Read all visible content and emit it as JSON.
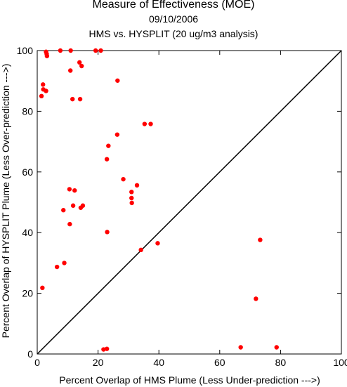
{
  "chart_data": {
    "type": "scatter",
    "title": "Measure of Effectiveness (MOE)",
    "subtitle": "09/10/2006",
    "subtitle2": "HMS vs. HYSPLIT  (20 ug/m3 analysis)",
    "xlabel": "Percent Overlap of HMS Plume (Less Under-prediction --->)",
    "ylabel": "Percent Overlap of HYSPLIT Plume (Less Over-prediction --->)",
    "xlim": [
      0,
      100
    ],
    "ylim": [
      0,
      100
    ],
    "xticks": [
      0,
      20,
      40,
      60,
      80,
      100
    ],
    "yticks": [
      0,
      20,
      40,
      60,
      80,
      100
    ],
    "grid": false,
    "reference_line": "y = x",
    "point_color": "#ff0000",
    "line_color": "#000000",
    "points": [
      {
        "x": 2.9,
        "y": 99.6
      },
      {
        "x": 3.1,
        "y": 98.9
      },
      {
        "x": 3.2,
        "y": 98.2
      },
      {
        "x": 7.6,
        "y": 100
      },
      {
        "x": 11.0,
        "y": 100
      },
      {
        "x": 19.2,
        "y": 100
      },
      {
        "x": 20.9,
        "y": 100
      },
      {
        "x": 13.9,
        "y": 96.1
      },
      {
        "x": 14.6,
        "y": 94.9
      },
      {
        "x": 10.9,
        "y": 93.4
      },
      {
        "x": 26.4,
        "y": 90.1
      },
      {
        "x": 1.9,
        "y": 88.8
      },
      {
        "x": 2.0,
        "y": 87.2
      },
      {
        "x": 2.9,
        "y": 86.7
      },
      {
        "x": 1.4,
        "y": 85.0
      },
      {
        "x": 11.6,
        "y": 84.0
      },
      {
        "x": 14.1,
        "y": 84.0
      },
      {
        "x": 35.3,
        "y": 75.8
      },
      {
        "x": 37.3,
        "y": 75.8
      },
      {
        "x": 26.3,
        "y": 72.3
      },
      {
        "x": 23.4,
        "y": 68.6
      },
      {
        "x": 22.9,
        "y": 64.2
      },
      {
        "x": 28.3,
        "y": 57.6
      },
      {
        "x": 32.8,
        "y": 55.6
      },
      {
        "x": 10.6,
        "y": 54.3
      },
      {
        "x": 12.3,
        "y": 53.9
      },
      {
        "x": 31.0,
        "y": 53.4
      },
      {
        "x": 31.0,
        "y": 51.4
      },
      {
        "x": 31.1,
        "y": 49.8
      },
      {
        "x": 11.8,
        "y": 48.9
      },
      {
        "x": 15.0,
        "y": 48.9
      },
      {
        "x": 14.3,
        "y": 48.2
      },
      {
        "x": 8.6,
        "y": 47.4
      },
      {
        "x": 10.7,
        "y": 42.8
      },
      {
        "x": 23.0,
        "y": 40.2
      },
      {
        "x": 73.3,
        "y": 37.6
      },
      {
        "x": 39.6,
        "y": 36.5
      },
      {
        "x": 34.1,
        "y": 34.3
      },
      {
        "x": 8.9,
        "y": 30.0
      },
      {
        "x": 6.5,
        "y": 28.7
      },
      {
        "x": 1.7,
        "y": 21.8
      },
      {
        "x": 71.9,
        "y": 18.2
      },
      {
        "x": 66.9,
        "y": 2.2
      },
      {
        "x": 78.7,
        "y": 2.2
      },
      {
        "x": 21.8,
        "y": 1.5
      },
      {
        "x": 22.9,
        "y": 1.7
      }
    ]
  }
}
